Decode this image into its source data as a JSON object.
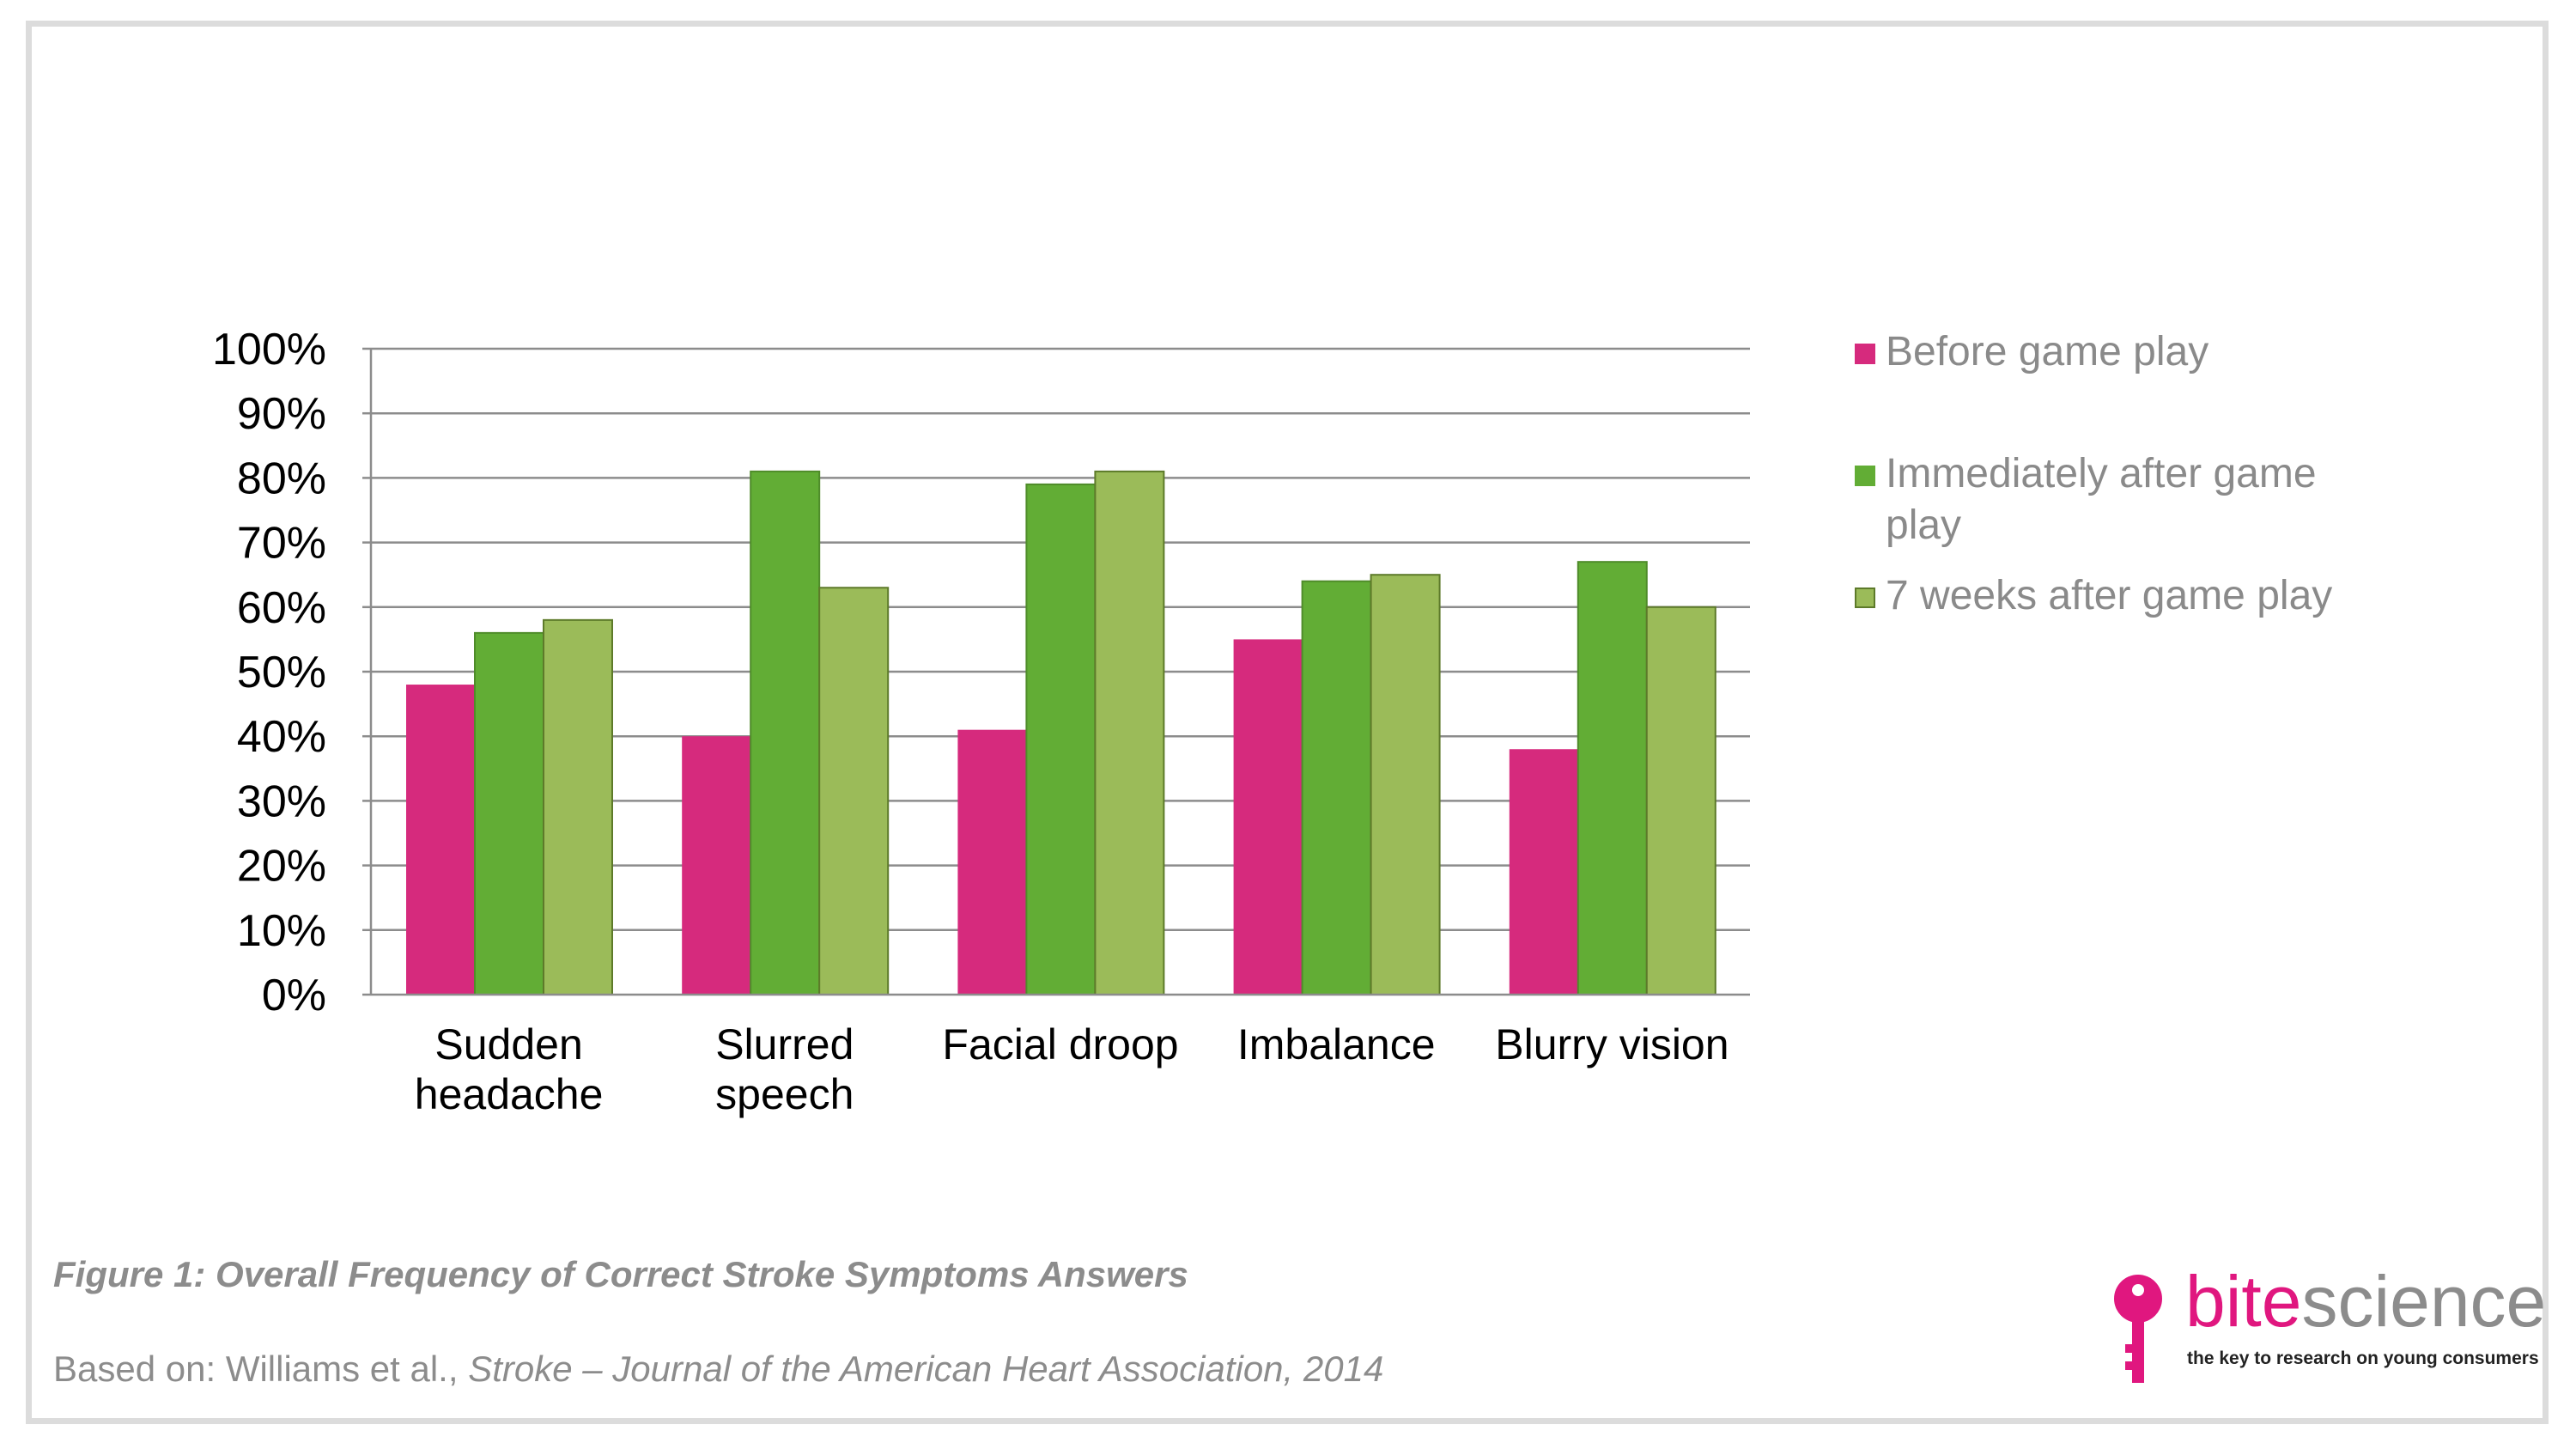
{
  "chart_data": {
    "type": "bar",
    "categories": [
      "Sudden headache",
      "Slurred speech",
      "Facial droop",
      "Imbalance",
      "Blurry vision"
    ],
    "category_lines": [
      [
        "Sudden",
        "headache"
      ],
      [
        "Slurred",
        "speech"
      ],
      [
        "Facial droop"
      ],
      [
        "Imbalance"
      ],
      [
        "Blurry vision"
      ]
    ],
    "series": [
      {
        "name": "Before game play",
        "values": [
          48,
          40,
          41,
          55,
          38
        ],
        "color": "#d62a7d"
      },
      {
        "name": "Immediately after game play",
        "values": [
          56,
          81,
          79,
          64,
          67
        ],
        "color": "#62ad35"
      },
      {
        "name": "7 weeks after game play",
        "values": [
          58,
          63,
          81,
          65,
          60
        ],
        "color": "#9bbb59"
      }
    ],
    "ylim": [
      0,
      100
    ],
    "yticks": [
      "0%",
      "10%",
      "20%",
      "30%",
      "40%",
      "50%",
      "60%",
      "70%",
      "80%",
      "90%",
      "100%"
    ],
    "grid": true,
    "legend_position": "right",
    "title": "",
    "xlabel": "",
    "ylabel": ""
  },
  "legend": {
    "items": [
      {
        "label": "Before game play",
        "color": "#d62a7d"
      },
      {
        "label": "Immediately after game play",
        "color": "#62ad35"
      },
      {
        "label": "7 weeks after game play",
        "color": "#9bbb59"
      }
    ]
  },
  "caption": "Figure 1: Overall Frequency of Correct Stroke Symptoms Answers",
  "source": {
    "prefix": "Based on: Williams et al., ",
    "journal": "Stroke",
    "rest": " – Journal of the American Heart Association, 2014"
  },
  "logo": {
    "bite": "bite",
    "science": "science",
    "tagline": "the key to research on young consumers",
    "icon": "key-icon",
    "color": "#e0177f"
  }
}
